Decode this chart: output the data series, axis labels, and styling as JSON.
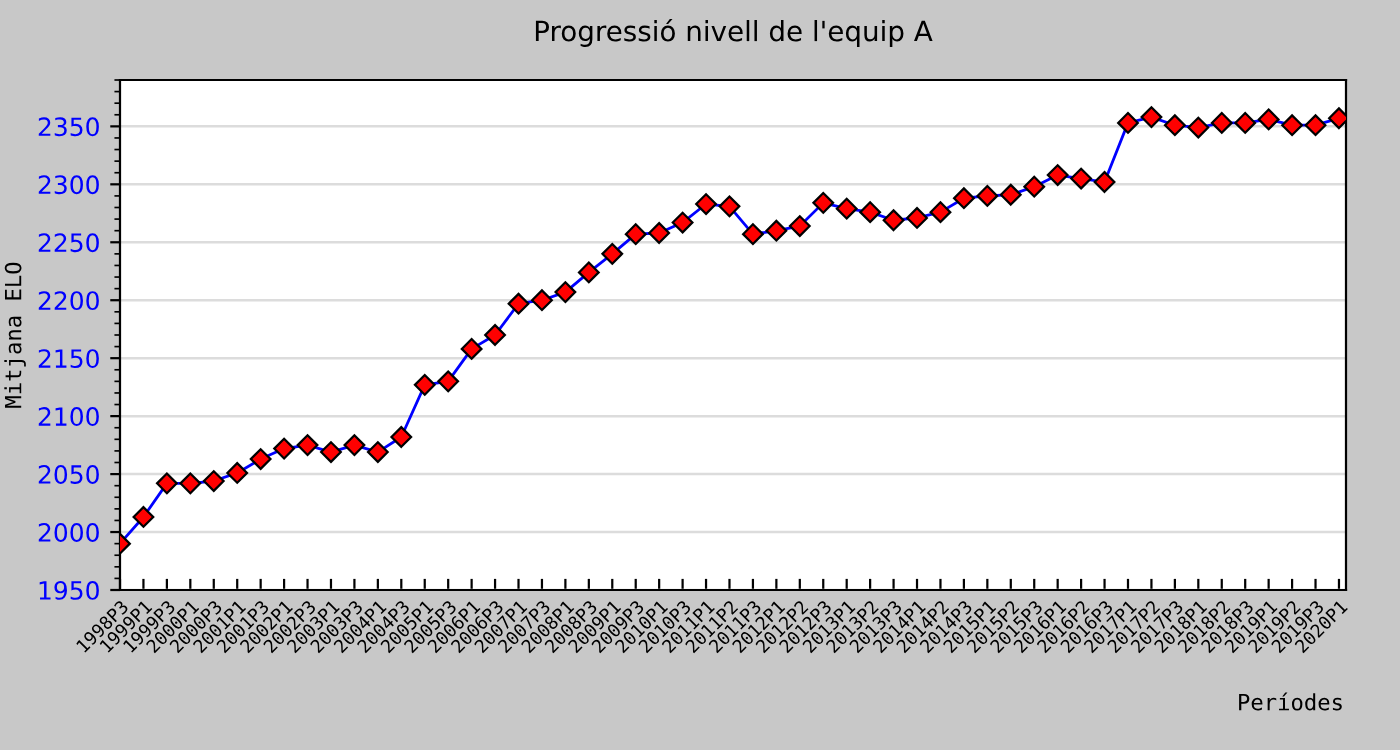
{
  "chart_data": {
    "type": "line",
    "title": "Progressió nivell de l'equip A",
    "xlabel": "Períodes",
    "ylabel": "Mitjana ELO",
    "categories": [
      "1998P3",
      "1999P1",
      "1999P3",
      "2000P1",
      "2000P3",
      "2001P1",
      "2001P3",
      "2002P1",
      "2002P3",
      "2003P1",
      "2003P3",
      "2004P1",
      "2004P3",
      "2005P1",
      "2005P3",
      "2006P1",
      "2006P3",
      "2007P1",
      "2007P3",
      "2008P1",
      "2008P3",
      "2009P1",
      "2009P3",
      "2010P1",
      "2010P3",
      "2011P1",
      "2011P2",
      "2011P3",
      "2012P1",
      "2012P2",
      "2012P3",
      "2013P1",
      "2013P2",
      "2013P3",
      "2014P1",
      "2014P2",
      "2014P3",
      "2015P1",
      "2015P2",
      "2015P3",
      "2016P1",
      "2016P2",
      "2016P3",
      "2017P1",
      "2017P2",
      "2017P3",
      "2018P1",
      "2018P2",
      "2018P3",
      "2019P1",
      "2019P2",
      "2019P3",
      "2020P1"
    ],
    "series": [
      {
        "color": "#0000ff",
        "values": [
          1990,
          2013,
          2042,
          2042,
          2044,
          2051,
          2063,
          2072,
          2075,
          2069,
          2075,
          2069,
          2082,
          2127,
          2130,
          2158,
          2170,
          2197,
          2200,
          2207,
          2224,
          2240,
          2257,
          2258,
          2267,
          2283,
          2281,
          2257,
          2260,
          2264,
          2284,
          2279,
          2276,
          2269,
          2271,
          2276,
          2288,
          2290,
          2291,
          2298,
          2308,
          2305,
          2302,
          2353,
          2358,
          2351,
          2349,
          2353,
          2353,
          2356,
          2351,
          2351,
          2357
        ]
      }
    ],
    "ylim": [
      1950,
      2390
    ],
    "yticks": [
      1950,
      2000,
      2050,
      2100,
      2150,
      2200,
      2250,
      2300,
      2350
    ],
    "grid": "y",
    "marker": "diamond",
    "line_style": "solid"
  }
}
